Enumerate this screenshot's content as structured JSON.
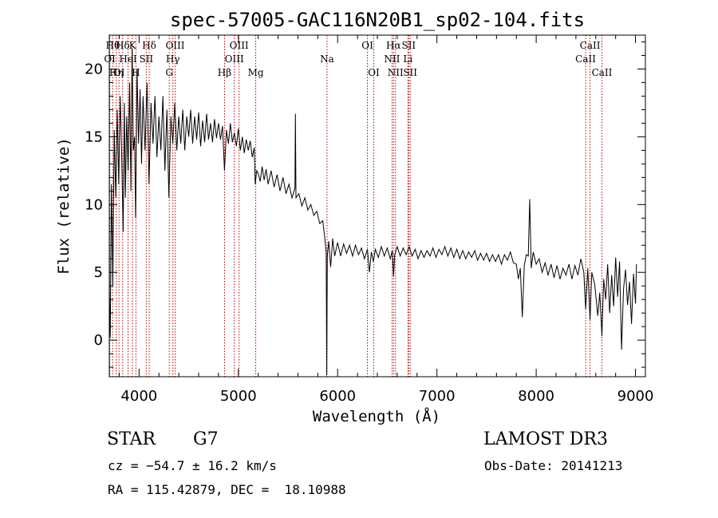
{
  "chart_data": {
    "type": "line",
    "title": "spec-57005-GAC116N20B1_sp02-104.fits",
    "xlabel": "Wavelength (Å)",
    "ylabel": "Flux (relative)",
    "xlim": [
      3700,
      9100
    ],
    "ylim": [
      -2.7,
      22.5
    ],
    "x_ticks": [
      4000,
      5000,
      6000,
      7000,
      8000,
      9000
    ],
    "x_tick_labels": [
      "4000",
      "5000",
      "6000",
      "7000",
      "8000",
      "9000"
    ],
    "y_ticks": [
      0,
      5,
      10,
      15,
      20
    ],
    "y_tick_labels": [
      "0",
      "5",
      "10",
      "15",
      "20"
    ],
    "grid": false,
    "line_color": "#000000",
    "marker_color": "#c00000",
    "series": [
      {
        "name": "flux",
        "points": [
          [
            3700,
            3.5
          ],
          [
            3710,
            0.2
          ],
          [
            3722,
            11.5
          ],
          [
            3735,
            4.0
          ],
          [
            3750,
            15.5
          ],
          [
            3765,
            10.5
          ],
          [
            3780,
            17.0
          ],
          [
            3795,
            11.5
          ],
          [
            3810,
            18.0
          ],
          [
            3825,
            13.5
          ],
          [
            3840,
            8.0
          ],
          [
            3852,
            17.5
          ],
          [
            3862,
            10.5
          ],
          [
            3875,
            16.5
          ],
          [
            3890,
            12.5
          ],
          [
            3905,
            19.0
          ],
          [
            3918,
            11.0
          ],
          [
            3930,
            21.5
          ],
          [
            3942,
            14.0
          ],
          [
            3955,
            15.0
          ],
          [
            3965,
            9.0
          ],
          [
            3980,
            20.0
          ],
          [
            3995,
            14.5
          ],
          [
            4010,
            18.5
          ],
          [
            4025,
            13.0
          ],
          [
            4040,
            18.0
          ],
          [
            4060,
            14.0
          ],
          [
            4080,
            19.0
          ],
          [
            4100,
            11.5
          ],
          [
            4120,
            17.5
          ],
          [
            4140,
            14.5
          ],
          [
            4160,
            18.0
          ],
          [
            4180,
            13.5
          ],
          [
            4200,
            16.5
          ],
          [
            4220,
            14.0
          ],
          [
            4240,
            18.0
          ],
          [
            4260,
            12.5
          ],
          [
            4280,
            17.0
          ],
          [
            4300,
            10.5
          ],
          [
            4320,
            16.5
          ],
          [
            4340,
            14.5
          ],
          [
            4360,
            17.5
          ],
          [
            4380,
            14.0
          ],
          [
            4400,
            16.5
          ],
          [
            4420,
            14.5
          ],
          [
            4440,
            17.0
          ],
          [
            4460,
            14.0
          ],
          [
            4480,
            16.5
          ],
          [
            4500,
            15.0
          ],
          [
            4520,
            17.0
          ],
          [
            4540,
            14.5
          ],
          [
            4560,
            16.5
          ],
          [
            4580,
            14.8
          ],
          [
            4600,
            16.8
          ],
          [
            4620,
            14.3
          ],
          [
            4640,
            16.2
          ],
          [
            4660,
            14.6
          ],
          [
            4680,
            16.7
          ],
          [
            4700,
            14.8
          ],
          [
            4720,
            16.0
          ],
          [
            4740,
            14.6
          ],
          [
            4760,
            16.3
          ],
          [
            4780,
            14.9
          ],
          [
            4800,
            16.0
          ],
          [
            4820,
            14.8
          ],
          [
            4840,
            15.8
          ],
          [
            4860,
            12.5
          ],
          [
            4880,
            15.5
          ],
          [
            4900,
            14.5
          ],
          [
            4920,
            16.0
          ],
          [
            4940,
            14.6
          ],
          [
            4960,
            15.3
          ],
          [
            4980,
            14.3
          ],
          [
            5000,
            15.6
          ],
          [
            5020,
            14.0
          ],
          [
            5040,
            15.0
          ],
          [
            5060,
            13.8
          ],
          [
            5080,
            14.8
          ],
          [
            5100,
            14.0
          ],
          [
            5120,
            14.7
          ],
          [
            5140,
            13.5
          ],
          [
            5160,
            14.2
          ],
          [
            5170,
            11.5
          ],
          [
            5185,
            12.5
          ],
          [
            5200,
            12.3
          ],
          [
            5220,
            11.7
          ],
          [
            5240,
            12.8
          ],
          [
            5260,
            11.8
          ],
          [
            5280,
            12.6
          ],
          [
            5300,
            11.5
          ],
          [
            5330,
            12.5
          ],
          [
            5360,
            11.3
          ],
          [
            5390,
            12.2
          ],
          [
            5420,
            11.0
          ],
          [
            5450,
            12.0
          ],
          [
            5480,
            10.8
          ],
          [
            5510,
            11.5
          ],
          [
            5540,
            10.5
          ],
          [
            5570,
            11.2
          ],
          [
            5575,
            16.7
          ],
          [
            5580,
            10.5
          ],
          [
            5610,
            10.8
          ],
          [
            5640,
            9.9
          ],
          [
            5670,
            10.5
          ],
          [
            5700,
            9.6
          ],
          [
            5730,
            10.0
          ],
          [
            5760,
            9.2
          ],
          [
            5790,
            9.5
          ],
          [
            5820,
            8.6
          ],
          [
            5850,
            8.8
          ],
          [
            5870,
            7.6
          ],
          [
            5885,
            6.5
          ],
          [
            5890,
            -2.6
          ],
          [
            5896,
            6.2
          ],
          [
            5910,
            7.3
          ],
          [
            5930,
            5.4
          ],
          [
            5950,
            7.5
          ],
          [
            5970,
            6.2
          ],
          [
            6000,
            7.2
          ],
          [
            6030,
            6.2
          ],
          [
            6060,
            7.1
          ],
          [
            6090,
            6.4
          ],
          [
            6120,
            7.0
          ],
          [
            6150,
            6.2
          ],
          [
            6180,
            7.0
          ],
          [
            6210,
            6.3
          ],
          [
            6240,
            6.8
          ],
          [
            6270,
            6.0
          ],
          [
            6300,
            6.7
          ],
          [
            6320,
            5.0
          ],
          [
            6340,
            6.5
          ],
          [
            6360,
            5.8
          ],
          [
            6380,
            6.7
          ],
          [
            6410,
            6.1
          ],
          [
            6440,
            6.9
          ],
          [
            6470,
            6.2
          ],
          [
            6500,
            6.8
          ],
          [
            6530,
            6.0
          ],
          [
            6550,
            6.6
          ],
          [
            6563,
            4.7
          ],
          [
            6575,
            6.3
          ],
          [
            6600,
            6.9
          ],
          [
            6630,
            6.2
          ],
          [
            6660,
            6.8
          ],
          [
            6690,
            6.3
          ],
          [
            6720,
            6.9
          ],
          [
            6750,
            6.2
          ],
          [
            6780,
            6.7
          ],
          [
            6810,
            6.0
          ],
          [
            6840,
            6.6
          ],
          [
            6870,
            6.1
          ],
          [
            6900,
            6.6
          ],
          [
            6930,
            6.2
          ],
          [
            6960,
            6.8
          ],
          [
            6990,
            6.1
          ],
          [
            7020,
            6.7
          ],
          [
            7050,
            6.3
          ],
          [
            7080,
            6.9
          ],
          [
            7110,
            6.2
          ],
          [
            7140,
            6.8
          ],
          [
            7170,
            6.1
          ],
          [
            7200,
            6.7
          ],
          [
            7230,
            6.0
          ],
          [
            7260,
            6.6
          ],
          [
            7290,
            6.0
          ],
          [
            7320,
            6.5
          ],
          [
            7350,
            6.1
          ],
          [
            7380,
            6.6
          ],
          [
            7410,
            5.9
          ],
          [
            7440,
            6.4
          ],
          [
            7470,
            5.9
          ],
          [
            7500,
            6.4
          ],
          [
            7530,
            5.8
          ],
          [
            7560,
            6.3
          ],
          [
            7590,
            5.8
          ],
          [
            7620,
            6.3
          ],
          [
            7650,
            5.6
          ],
          [
            7680,
            6.3
          ],
          [
            7710,
            5.9
          ],
          [
            7740,
            6.5
          ],
          [
            7770,
            5.7
          ],
          [
            7800,
            5.6
          ],
          [
            7820,
            4.5
          ],
          [
            7840,
            5.3
          ],
          [
            7860,
            1.7
          ],
          [
            7880,
            5.5
          ],
          [
            7900,
            6.3
          ],
          [
            7920,
            6.2
          ],
          [
            7935,
            10.4
          ],
          [
            7950,
            5.3
          ],
          [
            7970,
            6.5
          ],
          [
            8000,
            5.6
          ],
          [
            8030,
            6.0
          ],
          [
            8060,
            5.0
          ],
          [
            8090,
            5.7
          ],
          [
            8120,
            4.8
          ],
          [
            8150,
            5.6
          ],
          [
            8180,
            4.6
          ],
          [
            8210,
            5.5
          ],
          [
            8240,
            4.5
          ],
          [
            8270,
            5.3
          ],
          [
            8300,
            4.8
          ],
          [
            8330,
            5.6
          ],
          [
            8360,
            4.5
          ],
          [
            8390,
            5.5
          ],
          [
            8420,
            4.8
          ],
          [
            8450,
            6.0
          ],
          [
            8480,
            5.0
          ],
          [
            8498,
            2.3
          ],
          [
            8520,
            5.3
          ],
          [
            8542,
            1.5
          ],
          [
            8560,
            5.0
          ],
          [
            8590,
            4.1
          ],
          [
            8620,
            1.8
          ],
          [
            8640,
            3.5
          ],
          [
            8662,
            0.3
          ],
          [
            8680,
            4.5
          ],
          [
            8700,
            3.0
          ],
          [
            8720,
            5.6
          ],
          [
            8740,
            2.0
          ],
          [
            8760,
            4.8
          ],
          [
            8780,
            2.5
          ],
          [
            8800,
            6.1
          ],
          [
            8820,
            3.2
          ],
          [
            8840,
            5.8
          ],
          [
            8860,
            -0.7
          ],
          [
            8880,
            3.8
          ],
          [
            8900,
            5.2
          ],
          [
            8920,
            2.6
          ],
          [
            8940,
            4.3
          ],
          [
            8960,
            1.2
          ],
          [
            8980,
            4.9
          ],
          [
            9000,
            2.7
          ],
          [
            9010,
            5.6
          ]
        ]
      }
    ],
    "line_markers": [
      {
        "wavelength": 3705,
        "label": "OI",
        "row": 2
      },
      {
        "wavelength": 3735,
        "label": "Hθ",
        "row": 1
      },
      {
        "wavelength": 3770,
        "label": "Hη",
        "row": 3
      },
      {
        "wavelength": 3798,
        "label": "OI",
        "row": 3
      },
      {
        "wavelength": 3835,
        "label": "Hδ",
        "row": 1
      },
      {
        "wavelength": 3889,
        "label": "HeI",
        "row": 2
      },
      {
        "wavelength": 3934,
        "label": "K",
        "row": 1
      },
      {
        "wavelength": 3968,
        "label": "H",
        "row": 3
      },
      {
        "wavelength": 4072,
        "label": "SII",
        "row": 2
      },
      {
        "wavelength": 4102,
        "label": "Hδ",
        "row": 1
      },
      {
        "wavelength": 4304,
        "label": "G",
        "row": 3
      },
      {
        "wavelength": 4340,
        "label": "Hγ",
        "row": 2
      },
      {
        "wavelength": 4363,
        "label": "OIII",
        "row": 1
      },
      {
        "wavelength": 4861,
        "label": "Hβ",
        "row": 3
      },
      {
        "wavelength": 4959,
        "label": "OIII",
        "row": 2
      },
      {
        "wavelength": 5007,
        "label": "OIII",
        "row": 1
      },
      {
        "wavelength": 5175,
        "label": "Mg",
        "row": 3
      },
      {
        "wavelength": 5893,
        "label": "Na",
        "row": 2
      },
      {
        "wavelength": 6300,
        "label": "OI",
        "row": 1
      },
      {
        "wavelength": 6364,
        "label": "OI",
        "row": 3
      },
      {
        "wavelength": 6548,
        "label": "NII",
        "row": 2
      },
      {
        "wavelength": 6563,
        "label": "Hα",
        "row": 1
      },
      {
        "wavelength": 6583,
        "label": "NII",
        "row": 3
      },
      {
        "wavelength": 6708,
        "label": "Li",
        "row": 2
      },
      {
        "wavelength": 6716,
        "label": "SII",
        "row": 1
      },
      {
        "wavelength": 6731,
        "label": "SII",
        "row": 3
      },
      {
        "wavelength": 8498,
        "label": "CaII",
        "row": 2
      },
      {
        "wavelength": 8542,
        "label": "CaII",
        "row": 1
      },
      {
        "wavelength": 8662,
        "label": "CaII",
        "row": 3
      }
    ]
  },
  "info": {
    "object_class": "STAR",
    "subclass": "G7",
    "redshift": "cz = −54.7 ± 16.2 km/s",
    "coords": "RA = 115.42879, DEC =  18.10988",
    "survey": "LAMOST DR3",
    "obs_date": "Obs-Date: 20141213"
  }
}
